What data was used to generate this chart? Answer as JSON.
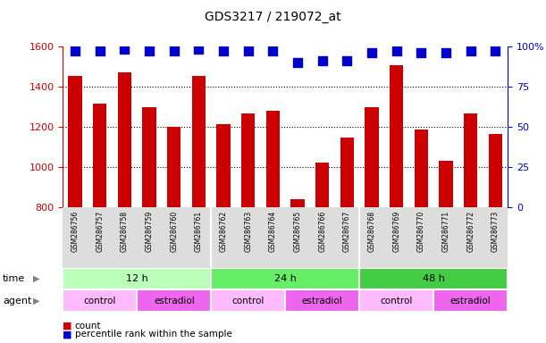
{
  "title": "GDS3217 / 219072_at",
  "samples": [
    "GSM286756",
    "GSM286757",
    "GSM286758",
    "GSM286759",
    "GSM286760",
    "GSM286761",
    "GSM286762",
    "GSM286763",
    "GSM286764",
    "GSM286765",
    "GSM286766",
    "GSM286767",
    "GSM286768",
    "GSM286769",
    "GSM286770",
    "GSM286771",
    "GSM286772",
    "GSM286773"
  ],
  "counts": [
    1455,
    1315,
    1470,
    1300,
    1200,
    1455,
    1215,
    1265,
    1280,
    840,
    1025,
    1145,
    1300,
    1505,
    1185,
    1030,
    1265,
    1165
  ],
  "percentile_ranks": [
    97,
    97,
    98,
    97,
    97,
    98,
    97,
    97,
    97,
    90,
    91,
    91,
    96,
    97,
    96,
    96,
    97,
    97
  ],
  "bar_color": "#cc0000",
  "dot_color": "#0000cc",
  "ymin": 800,
  "ymax": 1600,
  "yticks": [
    800,
    1000,
    1200,
    1400,
    1600
  ],
  "y2min": 0,
  "y2max": 100,
  "y2ticks": [
    0,
    25,
    50,
    75,
    100
  ],
  "y2ticklabels": [
    "0",
    "25",
    "50",
    "75",
    "100%"
  ],
  "time_groups": [
    {
      "label": "12 h",
      "start": 0,
      "end": 6,
      "color": "#bbffbb"
    },
    {
      "label": "24 h",
      "start": 6,
      "end": 12,
      "color": "#66ee66"
    },
    {
      "label": "48 h",
      "start": 12,
      "end": 18,
      "color": "#44cc44"
    }
  ],
  "agent_groups": [
    {
      "label": "control",
      "start": 0,
      "end": 3,
      "color": "#ffbbff"
    },
    {
      "label": "estradiol",
      "start": 3,
      "end": 6,
      "color": "#ee66ee"
    },
    {
      "label": "control",
      "start": 6,
      "end": 9,
      "color": "#ffbbff"
    },
    {
      "label": "estradiol",
      "start": 9,
      "end": 12,
      "color": "#ee66ee"
    },
    {
      "label": "control",
      "start": 12,
      "end": 15,
      "color": "#ffbbff"
    },
    {
      "label": "estradiol",
      "start": 15,
      "end": 18,
      "color": "#ee66ee"
    }
  ],
  "legend_count_label": "count",
  "legend_pct_label": "percentile rank within the sample",
  "time_label": "time",
  "agent_label": "agent",
  "bar_color_left": "#cc0000",
  "tick_label_color_left": "#cc0000",
  "tick_label_color_right": "#0000cc",
  "bar_width": 0.55,
  "dot_size": 45,
  "title_fontsize": 10
}
